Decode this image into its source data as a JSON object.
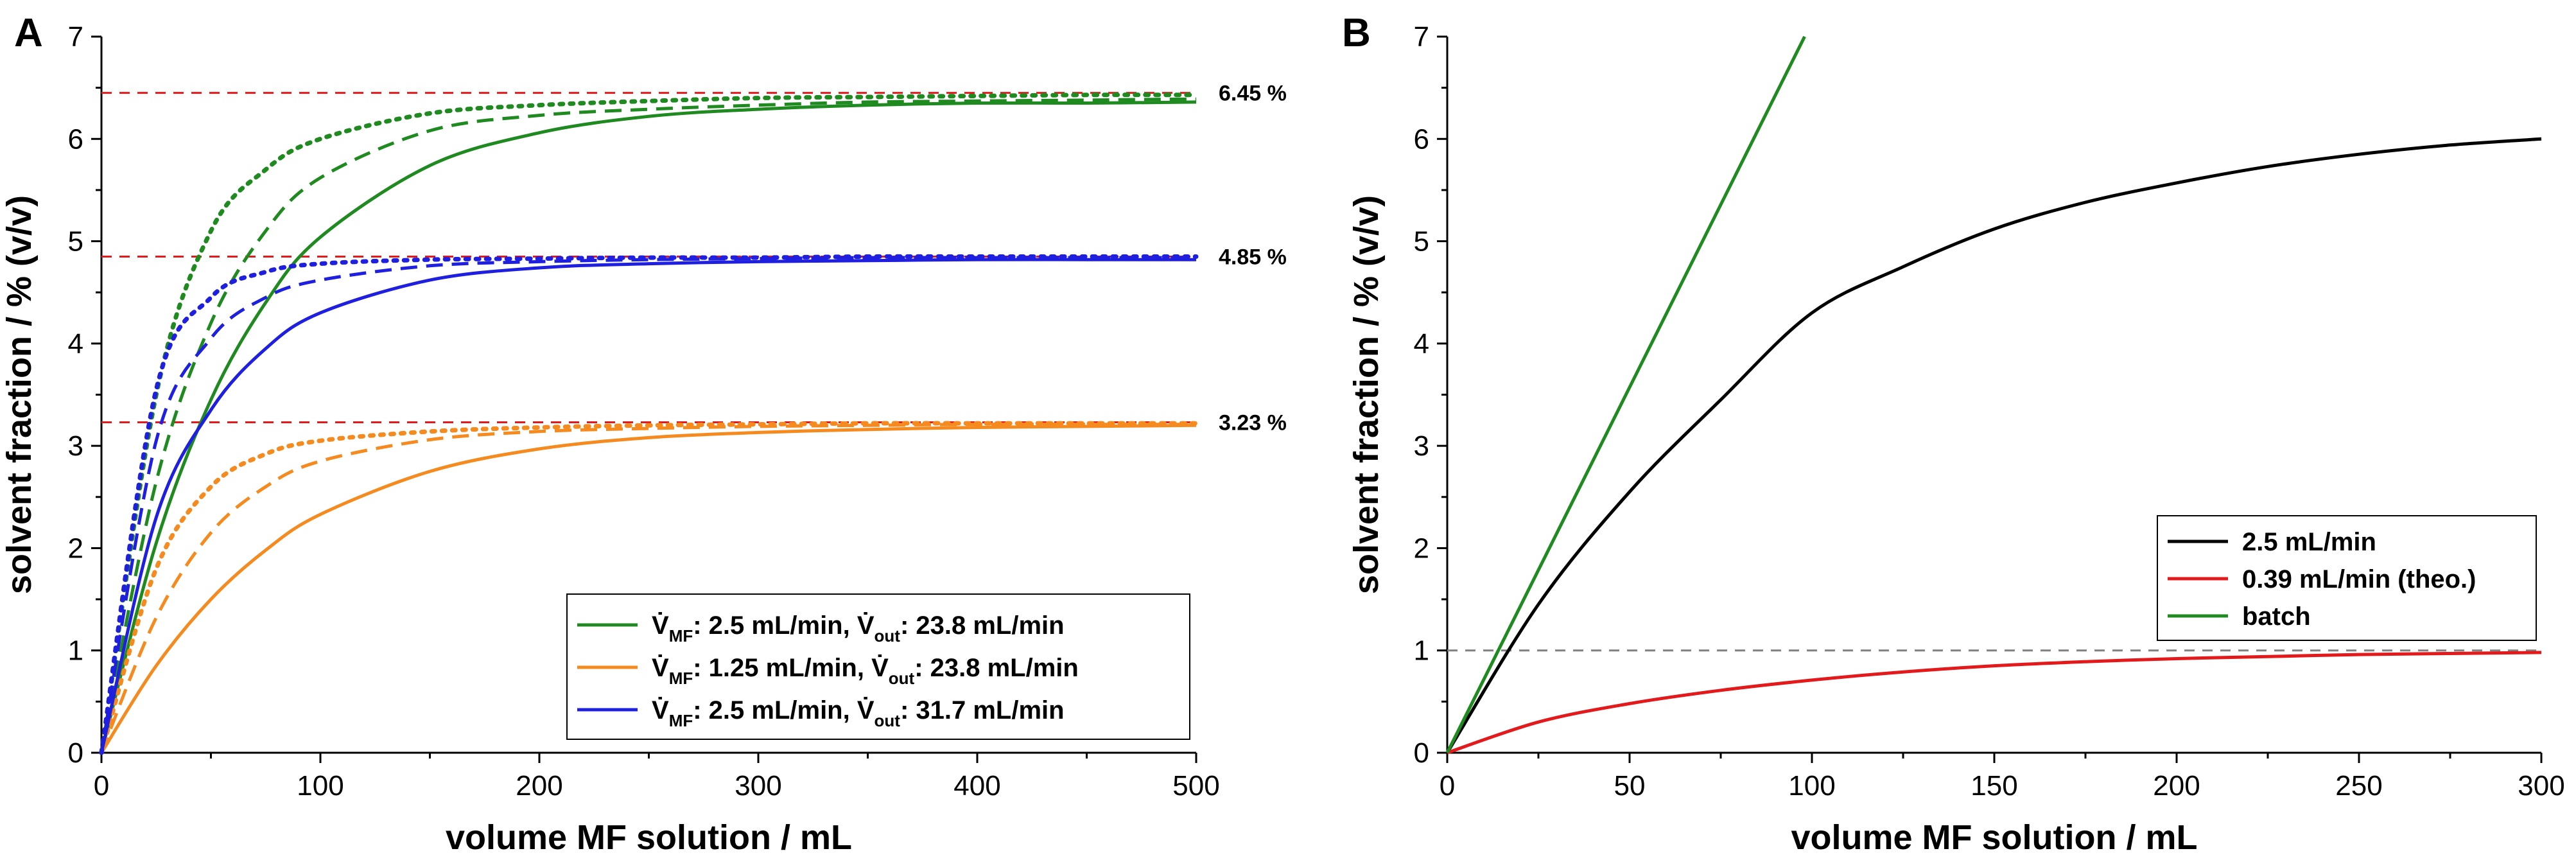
{
  "chart_data": [
    {
      "panel": "A",
      "type": "line",
      "xlabel": "volume MF solution / mL",
      "ylabel": "solvent fraction / % (v/v)",
      "xlim": [
        0,
        500
      ],
      "ylim": [
        0,
        7
      ],
      "xticks": [
        "0",
        "100",
        "200",
        "300",
        "400",
        "500"
      ],
      "yticks": [
        "0",
        "1",
        "2",
        "3",
        "4",
        "5",
        "6",
        "7"
      ],
      "grid": false,
      "legend_position": "bottom-right",
      "reference_lines": [
        {
          "y": 6.45,
          "label": "6.45 %",
          "color": "#e31a1c",
          "style": "dashed"
        },
        {
          "y": 4.85,
          "label": "4.85 %",
          "color": "#e31a1c",
          "style": "dashed"
        },
        {
          "y": 3.23,
          "label": "3.23 %",
          "color": "#e31a1c",
          "style": "dashed"
        }
      ],
      "legend": [
        {
          "color": "#1f8a1f",
          "v1": "V̇",
          "s1": "MF",
          "t1": ": 2.5 mL/min, ",
          "v2": "V̇",
          "s2": "out",
          "t2": ": 23.8 mL/min"
        },
        {
          "color": "#f58a1f",
          "v1": "V̇",
          "s1": "MF",
          "t1": ": 1.25 mL/min, ",
          "v2": "V̇",
          "s2": "out",
          "t2": ": 23.8 mL/min"
        },
        {
          "color": "#1f1fe0",
          "v1": "V̇",
          "s1": "MF",
          "t1": ": 2.5 mL/min, ",
          "v2": "V̇",
          "s2": "out",
          "t2": ": 31.7 mL/min"
        }
      ],
      "series": [
        {
          "color": "#1f8a1f",
          "style": "solid",
          "x": [
            0,
            25,
            50,
            75,
            100,
            150,
            200,
            250,
            300,
            350,
            400,
            450,
            500
          ],
          "y": [
            0,
            2.05,
            3.45,
            4.4,
            5.04,
            5.74,
            6.06,
            6.22,
            6.29,
            6.33,
            6.35,
            6.35,
            6.36
          ]
        },
        {
          "color": "#1f8a1f",
          "style": "dashed",
          "x": [
            0,
            25,
            50,
            75,
            100,
            150,
            200,
            250,
            300,
            350,
            400,
            450,
            500
          ],
          "y": [
            0,
            2.65,
            4.2,
            5.1,
            5.62,
            6.08,
            6.23,
            6.29,
            6.33,
            6.36,
            6.37,
            6.38,
            6.39
          ]
        },
        {
          "color": "#1f8a1f",
          "style": "dotted",
          "x": [
            0,
            25,
            50,
            75,
            100,
            150,
            200,
            250,
            300,
            350,
            400,
            450,
            500
          ],
          "y": [
            0,
            3.5,
            5.1,
            5.7,
            6.0,
            6.25,
            6.33,
            6.37,
            6.4,
            6.41,
            6.42,
            6.43,
            6.43
          ]
        },
        {
          "color": "#f58a1f",
          "style": "solid",
          "x": [
            0,
            25,
            50,
            75,
            100,
            150,
            200,
            250,
            300,
            350,
            400,
            450,
            500
          ],
          "y": [
            0,
            0.85,
            1.5,
            1.98,
            2.33,
            2.75,
            2.97,
            3.08,
            3.13,
            3.16,
            3.18,
            3.19,
            3.2
          ]
        },
        {
          "color": "#f58a1f",
          "style": "dashed",
          "x": [
            0,
            25,
            50,
            75,
            100,
            150,
            200,
            250,
            300,
            350,
            400,
            450,
            500
          ],
          "y": [
            0,
            1.32,
            2.15,
            2.6,
            2.85,
            3.06,
            3.14,
            3.17,
            3.19,
            3.2,
            3.21,
            3.21,
            3.21
          ]
        },
        {
          "color": "#f58a1f",
          "style": "dotted",
          "x": [
            0,
            25,
            50,
            75,
            100,
            150,
            200,
            250,
            300,
            350,
            400,
            450,
            500
          ],
          "y": [
            0,
            1.8,
            2.6,
            2.92,
            3.05,
            3.14,
            3.18,
            3.2,
            3.21,
            3.22,
            3.22,
            3.22,
            3.22
          ]
        },
        {
          "color": "#1f1fe0",
          "style": "solid",
          "x": [
            0,
            25,
            50,
            75,
            100,
            150,
            200,
            250,
            300,
            350,
            400,
            450,
            500
          ],
          "y": [
            0,
            2.3,
            3.35,
            3.95,
            4.3,
            4.62,
            4.74,
            4.78,
            4.8,
            4.81,
            4.82,
            4.82,
            4.82
          ]
        },
        {
          "color": "#1f1fe0",
          "style": "dashed",
          "x": [
            0,
            25,
            50,
            75,
            100,
            150,
            200,
            250,
            300,
            350,
            400,
            450,
            500
          ],
          "y": [
            0,
            3.05,
            4.05,
            4.45,
            4.62,
            4.76,
            4.8,
            4.82,
            4.83,
            4.84,
            4.84,
            4.84,
            4.84
          ]
        },
        {
          "color": "#1f1fe0",
          "style": "dotted",
          "x": [
            0,
            25,
            50,
            75,
            100,
            150,
            200,
            250,
            300,
            350,
            400,
            450,
            500
          ],
          "y": [
            0,
            3.55,
            4.45,
            4.7,
            4.78,
            4.82,
            4.83,
            4.84,
            4.84,
            4.85,
            4.85,
            4.85,
            4.85
          ]
        }
      ]
    },
    {
      "panel": "B",
      "type": "line",
      "xlabel": "volume MF solution / mL",
      "ylabel": "solvent fraction / % (v/v)",
      "xlim": [
        0,
        300
      ],
      "ylim": [
        0,
        7
      ],
      "xticks": [
        "0",
        "50",
        "100",
        "150",
        "200",
        "250",
        "300"
      ],
      "yticks": [
        "0",
        "1",
        "2",
        "3",
        "4",
        "5",
        "6",
        "7"
      ],
      "grid": false,
      "legend_position": "bottom-right",
      "reference_lines": [
        {
          "y": 1,
          "label": "",
          "color": "#808080",
          "style": "dashed"
        }
      ],
      "legend": [
        {
          "color": "#000000",
          "text": "2.5 mL/min"
        },
        {
          "color": "#e31a1c",
          "text": "0.39 mL/min (theo.)"
        },
        {
          "color": "#1f8a1f",
          "text": "batch"
        }
      ],
      "series": [
        {
          "name": "2.5 mL/min",
          "color": "#000000",
          "style": "solid",
          "x": [
            0,
            25,
            50,
            75,
            100,
            125,
            150,
            175,
            200,
            225,
            250,
            275,
            300
          ],
          "y": [
            0,
            1.45,
            2.55,
            3.45,
            4.3,
            4.75,
            5.12,
            5.38,
            5.57,
            5.73,
            5.85,
            5.94,
            6.0
          ]
        },
        {
          "name": "0.39 mL/min (theo.)",
          "color": "#e31a1c",
          "style": "solid",
          "x": [
            0,
            25,
            50,
            75,
            100,
            125,
            150,
            175,
            200,
            225,
            250,
            275,
            300
          ],
          "y": [
            0,
            0.3,
            0.48,
            0.61,
            0.71,
            0.79,
            0.85,
            0.89,
            0.92,
            0.94,
            0.96,
            0.97,
            0.98
          ]
        },
        {
          "name": "batch",
          "color": "#1f8a1f",
          "style": "solid",
          "x": [
            0,
            98
          ],
          "y": [
            0,
            7
          ]
        }
      ]
    }
  ]
}
